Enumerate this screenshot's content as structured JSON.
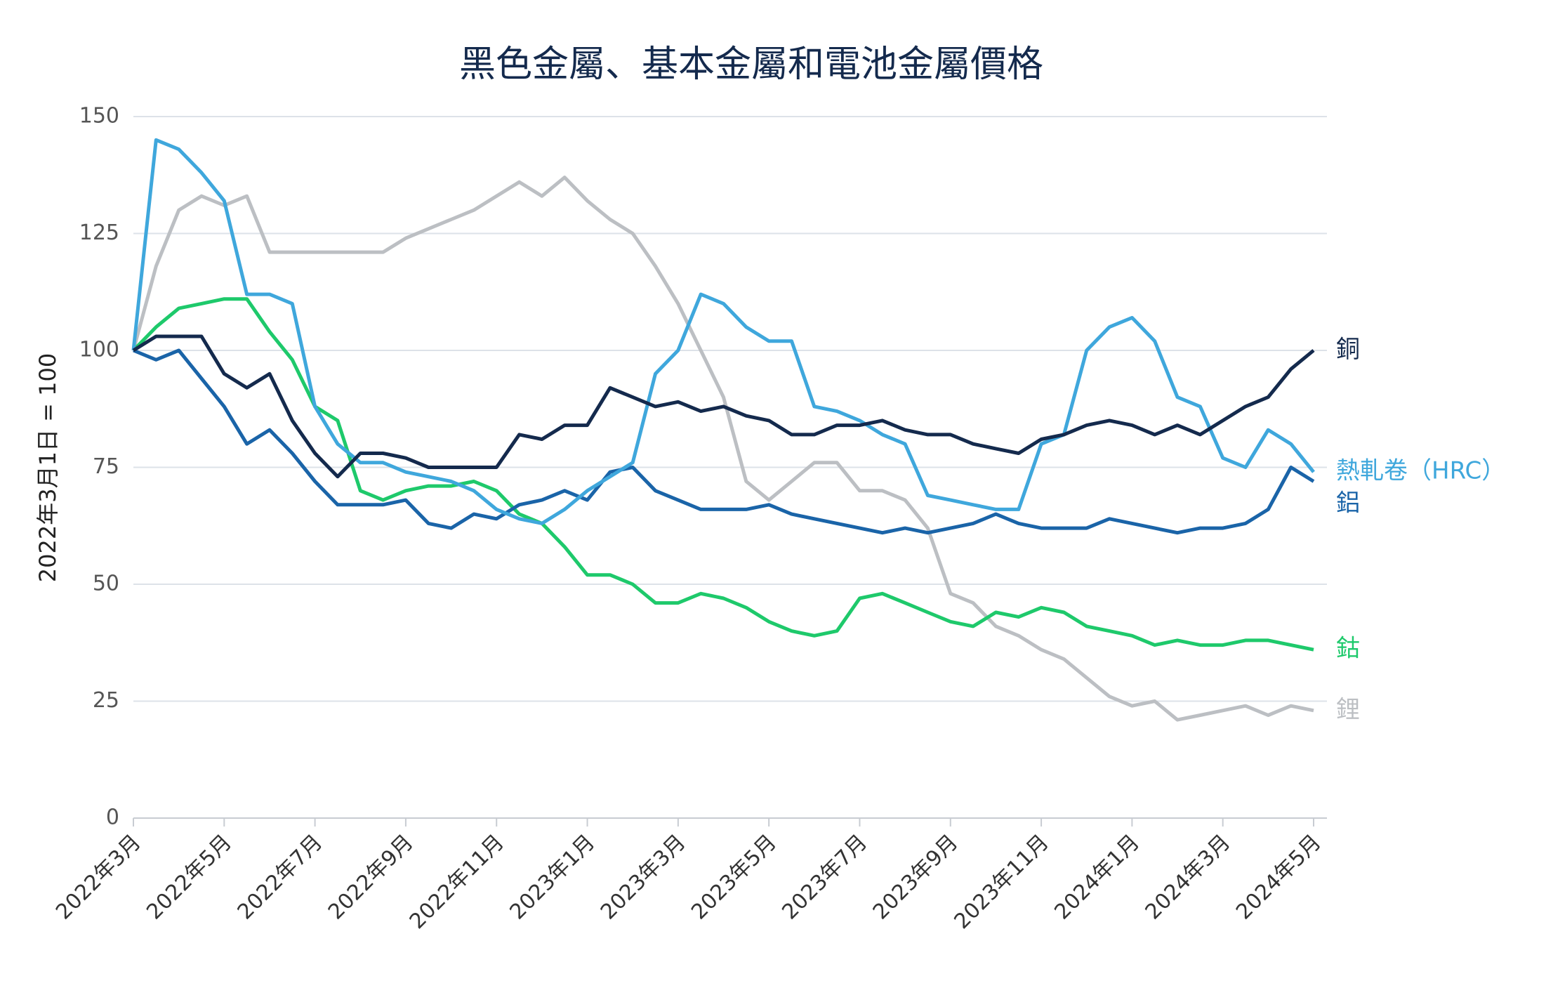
{
  "chart_data": {
    "type": "line",
    "title": "黑色金屬、基本金屬和電池金屬價格",
    "y_label": "2022年3月1日 = 100",
    "categories": [
      "2022年3月",
      null,
      null,
      null,
      "2022年5月",
      null,
      null,
      null,
      "2022年7月",
      null,
      null,
      null,
      "2022年9月",
      null,
      null,
      null,
      "2022年11月",
      null,
      null,
      null,
      "2023年1月",
      null,
      null,
      null,
      "2023年3月",
      null,
      null,
      null,
      "2023年5月",
      null,
      null,
      null,
      "2023年7月",
      null,
      null,
      null,
      "2023年9月",
      null,
      null,
      null,
      "2023年11月",
      null,
      null,
      null,
      "2024年1月",
      null,
      null,
      null,
      "2024年3月",
      null,
      null,
      null,
      "2024年5月"
    ],
    "ylim": [
      0,
      150
    ],
    "yticks": [
      0,
      25,
      50,
      75,
      100,
      125,
      150
    ],
    "grid": true,
    "series": [
      {
        "name": "銅",
        "color": "#142a4d",
        "values": [
          100,
          103,
          103,
          103,
          95,
          92,
          95,
          85,
          78,
          73,
          78,
          78,
          77,
          75,
          75,
          75,
          75,
          82,
          81,
          84,
          84,
          92,
          90,
          88,
          89,
          87,
          88,
          86,
          85,
          82,
          82,
          84,
          84,
          85,
          83,
          82,
          82,
          80,
          79,
          78,
          81,
          82,
          84,
          85,
          84,
          82,
          84,
          82,
          85,
          88,
          90,
          96,
          100
        ]
      },
      {
        "name": "熱軋卷（HRC）",
        "color": "#3fa7dc",
        "values": [
          100,
          145,
          143,
          138,
          132,
          112,
          112,
          110,
          88,
          80,
          76,
          76,
          74,
          73,
          72,
          70,
          66,
          64,
          63,
          66,
          70,
          73,
          76,
          95,
          100,
          112,
          110,
          105,
          102,
          102,
          88,
          87,
          85,
          82,
          80,
          69,
          68,
          67,
          66,
          66,
          80,
          82,
          100,
          105,
          107,
          102,
          90,
          88,
          77,
          75,
          83,
          80,
          74
        ]
      },
      {
        "name": "鋁",
        "color": "#1a64a8",
        "values": [
          100,
          98,
          100,
          94,
          88,
          80,
          83,
          78,
          72,
          67,
          67,
          67,
          68,
          63,
          62,
          65,
          64,
          67,
          68,
          70,
          68,
          74,
          75,
          70,
          68,
          66,
          66,
          66,
          67,
          65,
          64,
          63,
          62,
          61,
          62,
          61,
          62,
          63,
          65,
          63,
          62,
          62,
          62,
          64,
          63,
          62,
          61,
          62,
          62,
          63,
          66,
          75,
          72
        ]
      },
      {
        "name": "鈷",
        "color": "#1ec96b",
        "values": [
          100,
          105,
          109,
          110,
          111,
          111,
          104,
          98,
          88,
          85,
          70,
          68,
          70,
          71,
          71,
          72,
          70,
          65,
          63,
          58,
          52,
          52,
          50,
          46,
          46,
          48,
          47,
          45,
          42,
          40,
          39,
          40,
          47,
          48,
          46,
          44,
          42,
          41,
          44,
          43,
          45,
          44,
          41,
          40,
          39,
          37,
          38,
          37,
          37,
          38,
          38,
          37,
          36
        ]
      },
      {
        "name": "鋰",
        "color": "#bcbfc3",
        "values": [
          100,
          118,
          130,
          133,
          131,
          133,
          121,
          121,
          121,
          121,
          121,
          121,
          124,
          126,
          128,
          130,
          133,
          136,
          133,
          137,
          132,
          128,
          125,
          118,
          110,
          100,
          90,
          72,
          68,
          72,
          76,
          76,
          70,
          70,
          68,
          62,
          48,
          46,
          41,
          39,
          36,
          34,
          30,
          26,
          24,
          25,
          21,
          22,
          23,
          24,
          22,
          24,
          23
        ]
      }
    ]
  }
}
